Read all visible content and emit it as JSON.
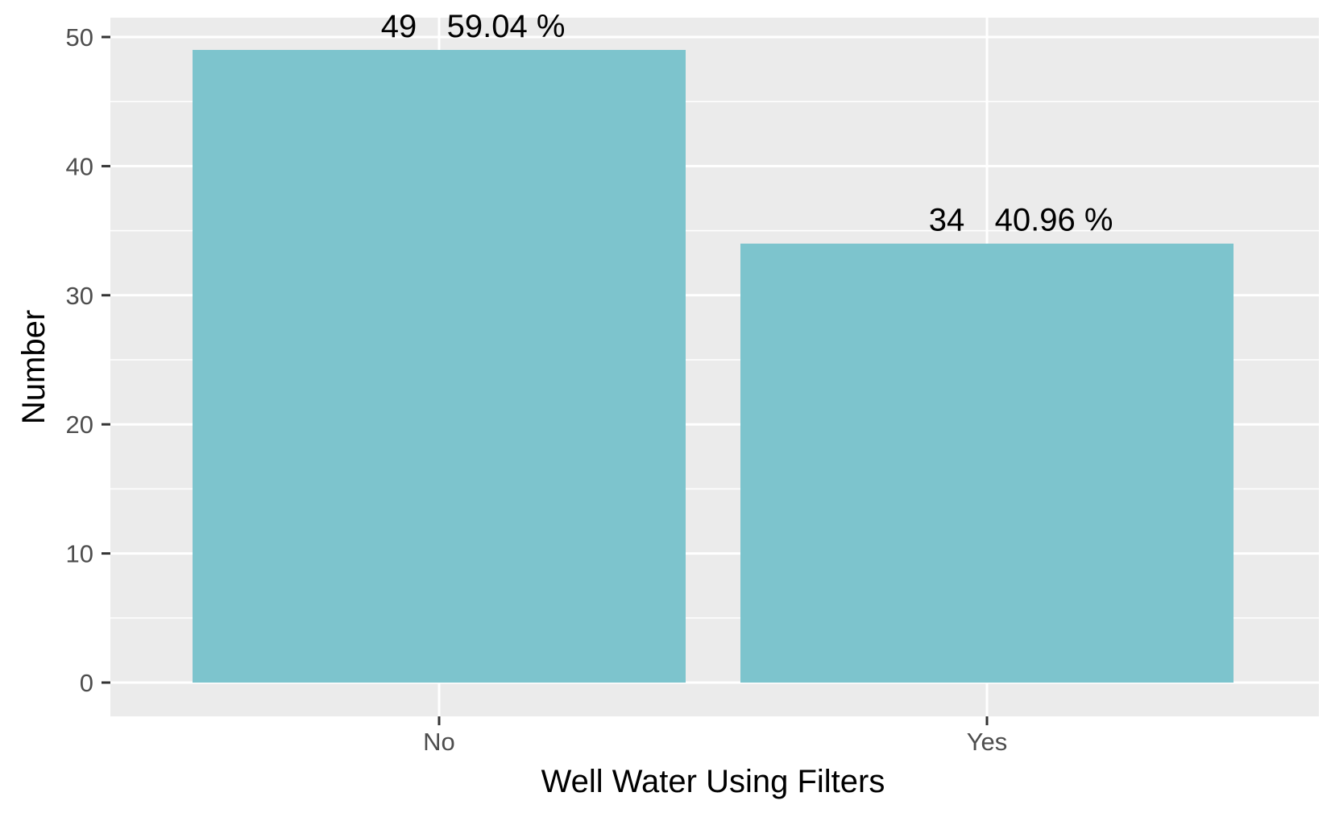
{
  "chart_data": {
    "type": "bar",
    "xlabel": "Well Water Using Filters",
    "ylabel": "Number",
    "categories": [
      "No",
      "Yes"
    ],
    "values": [
      49,
      34
    ],
    "count_labels": [
      "49",
      "34"
    ],
    "percent_labels": [
      "59.04 %",
      "40.96 %"
    ],
    "ylim": [
      0,
      50
    ],
    "yticks": [
      "0",
      "10",
      "20",
      "30",
      "40",
      "50"
    ],
    "grid": true,
    "legend": "none"
  },
  "colors": {
    "bar": "#7dc4cd",
    "panel": "#ebebeb",
    "grid": "#ffffff",
    "tick_text": "#4d4d4d",
    "tick_mark": "#333333",
    "text": "#000000"
  }
}
